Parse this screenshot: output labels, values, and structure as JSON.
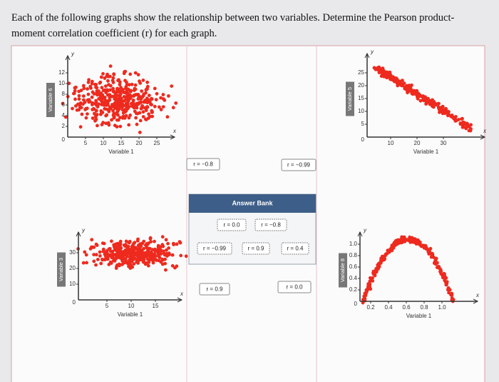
{
  "question": "Each of the following graphs show the relationship between two variables. Determine the Pearson product-moment correlation coefficient (r) for each graph.",
  "axis_letters": {
    "x": "x",
    "y": "y"
  },
  "graphs": [
    {
      "ylabel": "Variable 6",
      "xlabel": "Variable 1",
      "origin": "0",
      "yticks": [
        "2",
        "4",
        "6",
        "8",
        "10",
        "12"
      ],
      "xticks": [
        "5",
        "10",
        "15",
        "20",
        "25"
      ]
    },
    {
      "ylabel": "Variable 5",
      "xlabel": "Variable 1",
      "origin": "0",
      "yticks": [
        "5",
        "10",
        "15",
        "20",
        "25"
      ],
      "xticks": [
        "10",
        "20",
        "30"
      ]
    },
    {
      "ylabel": "Variable 3",
      "xlabel": "Variable 1",
      "origin": "0",
      "yticks": [
        "10",
        "20",
        "30"
      ],
      "xticks": [
        "5",
        "10",
        "15"
      ]
    },
    {
      "ylabel": "Variable 8",
      "xlabel": "Variable 1",
      "origin": "0",
      "yticks": [
        "0.2",
        "0.4",
        "0.6",
        "0.8",
        "1.0"
      ],
      "xticks": [
        "0.2",
        "0.4",
        "0.6",
        "0.8",
        "1.0"
      ]
    }
  ],
  "drop_zones": [
    "r = −0.8",
    "r = −0.99",
    "r = 0.9",
    "r = 0.0"
  ],
  "answer_bank": {
    "title": "Answer Bank",
    "items": [
      "r = 0.0",
      "r = −0.8",
      "r = −0.99",
      "r = 0.9",
      "r = 0.4"
    ]
  }
}
